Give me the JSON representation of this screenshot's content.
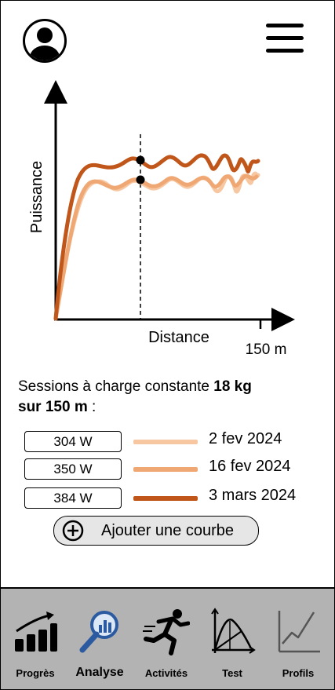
{
  "header": {
    "profile_icon": "user-avatar-icon",
    "menu_icon": "hamburger-menu-icon"
  },
  "chart_data": {
    "type": "line",
    "ylabel": "Puissance",
    "xlabel": "Distance",
    "x_end_label": "150 m",
    "series": [
      {
        "date": "2 fev 2024",
        "color": "#f7c7a2",
        "avg_power": "304 W"
      },
      {
        "date": "16 fev 2024",
        "color": "#efa773",
        "avg_power": "350 W"
      },
      {
        "date": "3 mars 2024",
        "color": "#c0561a",
        "avg_power": "384 W"
      }
    ],
    "marker_line": "dashed vertical line with two black points"
  },
  "description": {
    "prefix": "Sessions à charge constante ",
    "load": "18 kg",
    "line2": "sur 150 m",
    "suffix": " :"
  },
  "legend": [
    {
      "value": "304 W",
      "label": "2 fev 2024",
      "color": "#f7c7a2"
    },
    {
      "value": "350 W",
      "label": "16 fev 2024",
      "color": "#efa773"
    },
    {
      "value": "384 W",
      "label": "3 mars 2024",
      "color": "#c0561a"
    }
  ],
  "add_button": {
    "label": "Ajouter une courbe",
    "icon": "plus-circle-icon"
  },
  "nav": [
    {
      "label": "Progrès",
      "icon": "bar-chart-icon"
    },
    {
      "label": "Analyse",
      "icon": "magnify-analysis-icon",
      "active": true
    },
    {
      "label": "Activités",
      "icon": "runner-icon"
    },
    {
      "label": "Test",
      "icon": "test-curve-icon"
    },
    {
      "label": "Profils",
      "icon": "line-graph-icon"
    }
  ],
  "colors": {
    "accent_dark": "#c0561a",
    "accent_mid": "#efa773",
    "accent_light": "#f7c7a2",
    "nav_bg": "#b3b3b3",
    "active_icon": "#2c5aa0"
  }
}
